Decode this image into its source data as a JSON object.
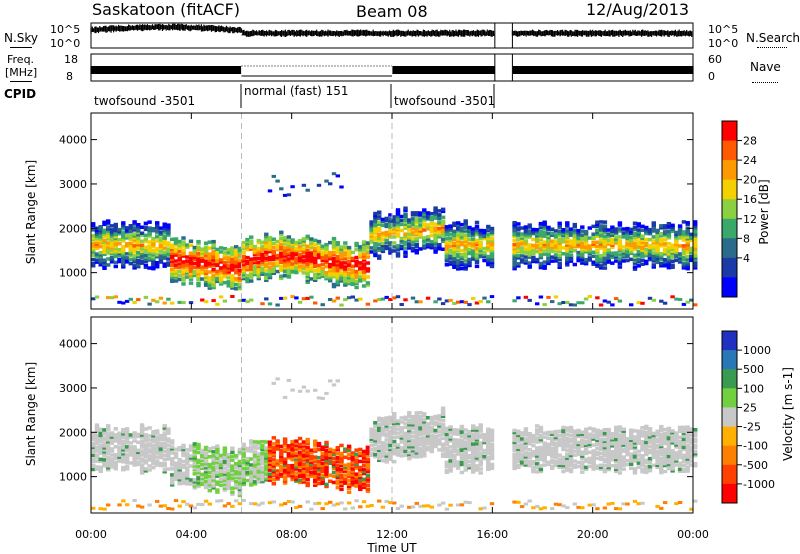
{
  "header": {
    "station": "Saskatoon (fitACF)",
    "beam": "Beam 08",
    "date": "12/Aug/2013"
  },
  "side_labels": {
    "nsky": "N.Sky",
    "freq_line1": "Freq.",
    "freq_line2": "[MHz]",
    "cpid": "CPID",
    "nsearch": "N.Search",
    "nave": "Nave"
  },
  "strip_ticks": {
    "noise_left": [
      "10^5",
      "10^0"
    ],
    "noise_right": [
      "10^5",
      "10^0"
    ],
    "freq_left": [
      "18",
      "8"
    ],
    "nave_right": [
      "60",
      "0"
    ]
  },
  "cpid_segments": [
    {
      "start_hour": 0,
      "end_hour": 6,
      "label": "twofsound -3501"
    },
    {
      "start_hour": 6,
      "end_hour": 12,
      "label": "normal (fast) 151"
    },
    {
      "start_hour": 12,
      "end_hour": 16,
      "label": "twofsound -3501"
    }
  ],
  "x_axis": {
    "label": "Time UT",
    "ticks": [
      "00:00",
      "04:00",
      "08:00",
      "12:00",
      "16:00",
      "20:00",
      "00:00"
    ]
  },
  "chart_data": [
    {
      "type": "heatmap",
      "panel": "power",
      "ylabel": "Slant Range [km]",
      "colorbar_label": "Power [dB]",
      "x_range_hours": [
        0,
        24
      ],
      "ylim_km": [
        180,
        4600
      ],
      "y_ticks": [
        "1000",
        "2000",
        "3000",
        "4000"
      ],
      "colorbar_ticks": [
        "28",
        "24",
        "20",
        "16",
        "12",
        "8",
        "4"
      ],
      "colorbar_colors": [
        "#ff0000",
        "#ff5a00",
        "#ff9900",
        "#f5d000",
        "#8ad040",
        "#3aa86a",
        "#2a6a8a",
        "#1a3aa8",
        "#0000ff"
      ],
      "data_gap_hours": [
        16.1,
        16.8
      ],
      "mode_change_hours": [
        6,
        12
      ]
    },
    {
      "type": "heatmap",
      "panel": "velocity",
      "ylabel": "Slant Range [km]",
      "colorbar_label": "Velocity [m s-1]",
      "x_range_hours": [
        0,
        24
      ],
      "ylim_km": [
        180,
        4600
      ],
      "y_ticks": [
        "1000",
        "2000",
        "3000",
        "4000"
      ],
      "colorbar_ticks": [
        "1000",
        "500",
        "100",
        "25",
        "-25",
        "-100",
        "-500",
        "-1000"
      ],
      "colorbar_colors": [
        "#2030c0",
        "#2878b8",
        "#3a9a50",
        "#70d040",
        "#c8c8c8",
        "#ffb000",
        "#ff8000",
        "#ff4000",
        "#ff0000"
      ],
      "data_gap_hours": [
        16.1,
        16.8
      ],
      "mode_change_hours": [
        6,
        12
      ]
    }
  ]
}
